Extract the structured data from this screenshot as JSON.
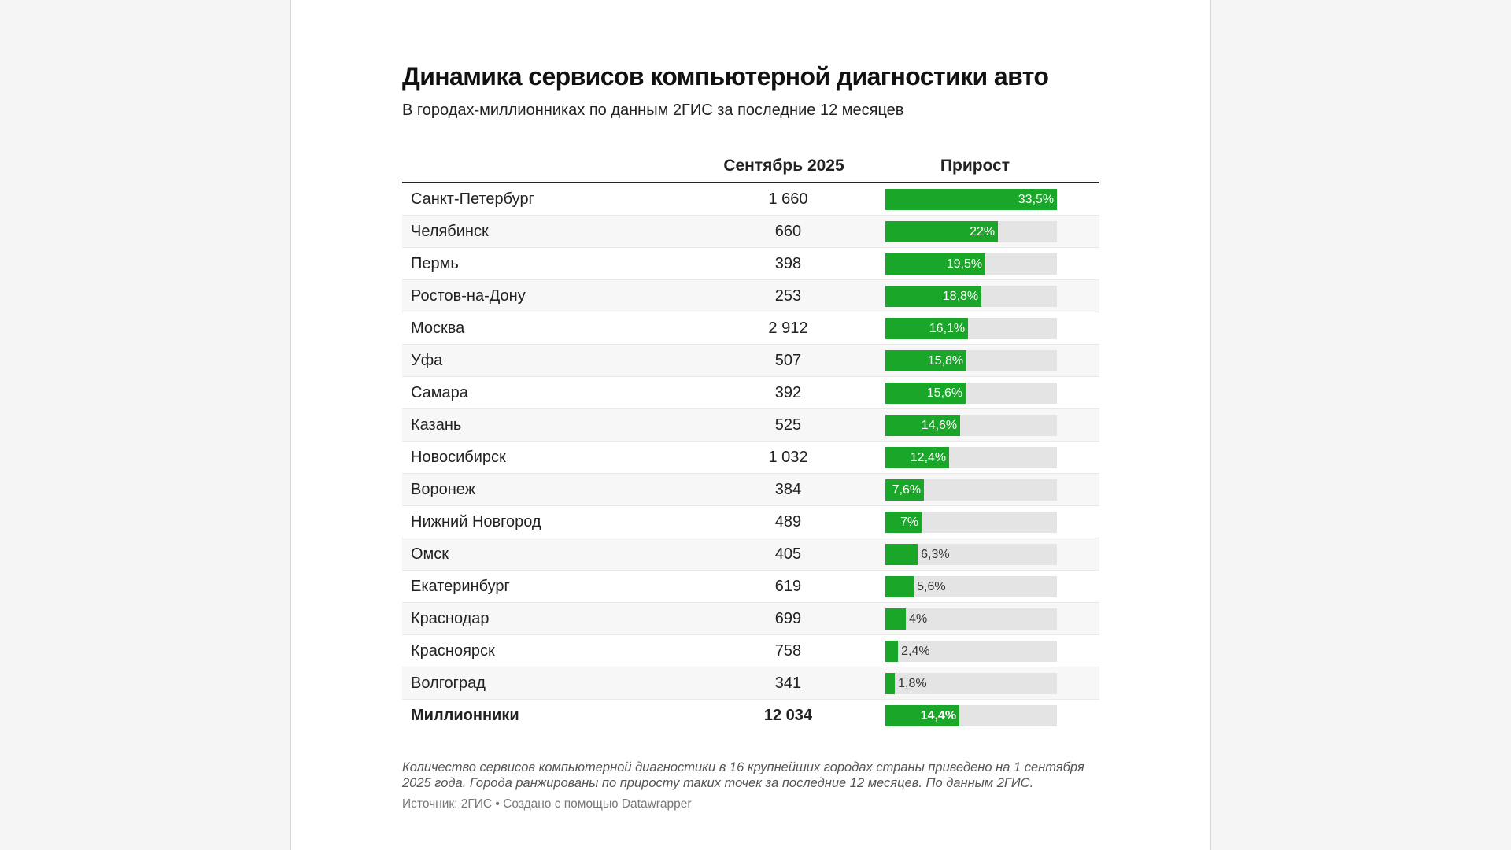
{
  "title": "Динамика сервисов компьютерной диагностики авто",
  "subtitle": "В городах-миллионниках по данным 2ГИС за последние 12 месяцев",
  "columns": {
    "value": "Сентябрь 2025",
    "growth": "Прирост"
  },
  "colors": {
    "bar": "#1aa629",
    "track": "#e4e4e4"
  },
  "chart_data": {
    "type": "table",
    "title": "Динамика сервисов компьютерной диагностики авто",
    "growth_max": 33.5,
    "rows": [
      {
        "city": "Санкт-Петербург",
        "value": "1 660",
        "growth": 33.5,
        "growth_label": "33,5%"
      },
      {
        "city": "Челябинск",
        "value": "660",
        "growth": 22,
        "growth_label": "22%"
      },
      {
        "city": "Пермь",
        "value": "398",
        "growth": 19.5,
        "growth_label": "19,5%"
      },
      {
        "city": "Ростов-на-Дону",
        "value": "253",
        "growth": 18.8,
        "growth_label": "18,8%"
      },
      {
        "city": "Москва",
        "value": "2 912",
        "growth": 16.1,
        "growth_label": "16,1%"
      },
      {
        "city": "Уфа",
        "value": "507",
        "growth": 15.8,
        "growth_label": "15,8%"
      },
      {
        "city": "Самара",
        "value": "392",
        "growth": 15.6,
        "growth_label": "15,6%"
      },
      {
        "city": "Казань",
        "value": "525",
        "growth": 14.6,
        "growth_label": "14,6%"
      },
      {
        "city": "Новосибирск",
        "value": "1 032",
        "growth": 12.4,
        "growth_label": "12,4%"
      },
      {
        "city": "Воронеж",
        "value": "384",
        "growth": 7.6,
        "growth_label": "7,6%"
      },
      {
        "city": "Нижний Новгород",
        "value": "489",
        "growth": 7,
        "growth_label": "7%"
      },
      {
        "city": "Омск",
        "value": "405",
        "growth": 6.3,
        "growth_label": "6,3%"
      },
      {
        "city": "Екатеринбург",
        "value": "619",
        "growth": 5.6,
        "growth_label": "5,6%"
      },
      {
        "city": "Краснодар",
        "value": "699",
        "growth": 4,
        "growth_label": "4%"
      },
      {
        "city": "Красноярск",
        "value": "758",
        "growth": 2.4,
        "growth_label": "2,4%"
      },
      {
        "city": "Волгоград",
        "value": "341",
        "growth": 1.8,
        "growth_label": "1,8%"
      },
      {
        "city": "Миллионники",
        "value": "12 034",
        "growth": 14.4,
        "growth_label": "14,4%",
        "total": true
      }
    ]
  },
  "notes": "Количество сервисов компьютерной диагностики в 16 крупнейших городах страны приведено на 1 сентября 2025 года. Города ранжированы по приросту таких точек за последние 12 месяцев. По данным 2ГИС.",
  "source": "Источник: 2ГИС • Создано с помощью Datawrapper"
}
